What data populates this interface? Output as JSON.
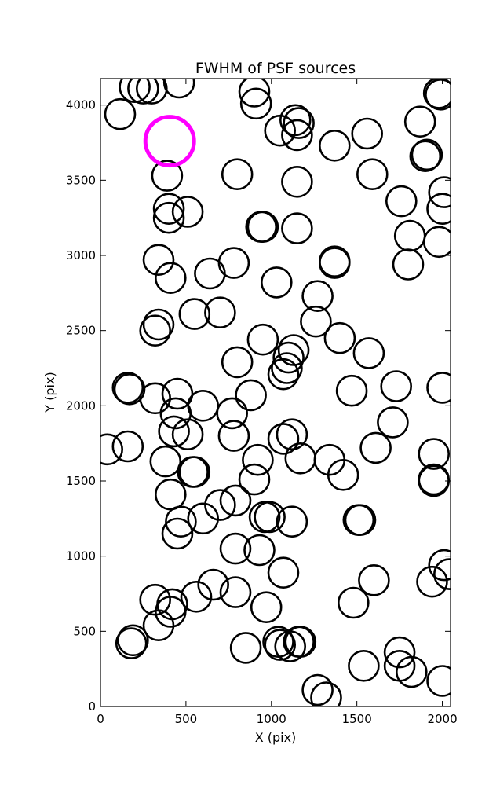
{
  "chart_data": {
    "type": "scatter",
    "title": "FWHM of PSF sources",
    "xlabel": "X (pix)",
    "ylabel": "Y (pix)",
    "xlim": [
      0,
      2048
    ],
    "ylim": [
      0,
      4176
    ],
    "xticks": [
      0,
      500,
      1000,
      1500,
      2000
    ],
    "yticks": [
      0,
      500,
      1000,
      1500,
      2000,
      2500,
      3000,
      3500,
      4000
    ],
    "grid": false,
    "marker": "open-circle",
    "series": [
      {
        "color": "#000000",
        "points": [
          [
            200,
            4120
          ],
          [
            300,
            4110
          ],
          [
            250,
            4110
          ],
          [
            460,
            4150
          ],
          [
            115,
            3940
          ],
          [
            900,
            4090
          ],
          [
            910,
            4010
          ],
          [
            1050,
            3830
          ],
          [
            1140,
            3900
          ],
          [
            1160,
            3880
          ],
          [
            1150,
            3800
          ],
          [
            1370,
            3730
          ],
          [
            1560,
            3810
          ],
          [
            1870,
            3890
          ],
          [
            1910,
            3670
          ],
          [
            1900,
            3660
          ],
          [
            1980,
            4080
          ],
          [
            1990,
            4070
          ],
          [
            390,
            3530
          ],
          [
            800,
            3540
          ],
          [
            1150,
            3490
          ],
          [
            1590,
            3540
          ],
          [
            1760,
            3360
          ],
          [
            2010,
            3420
          ],
          [
            2000,
            3310
          ],
          [
            400,
            3310
          ],
          [
            400,
            3250
          ],
          [
            510,
            3290
          ],
          [
            940,
            3190
          ],
          [
            950,
            3190
          ],
          [
            1150,
            3180
          ],
          [
            1810,
            3130
          ],
          [
            1980,
            3090
          ],
          [
            1800,
            2940
          ],
          [
            340,
            2970
          ],
          [
            410,
            2850
          ],
          [
            640,
            2880
          ],
          [
            780,
            2950
          ],
          [
            1370,
            2960
          ],
          [
            1370,
            2950
          ],
          [
            1030,
            2820
          ],
          [
            1270,
            2730
          ],
          [
            550,
            2610
          ],
          [
            700,
            2620
          ],
          [
            340,
            2540
          ],
          [
            320,
            2500
          ],
          [
            1260,
            2560
          ],
          [
            1400,
            2450
          ],
          [
            950,
            2440
          ],
          [
            1130,
            2370
          ],
          [
            1100,
            2320
          ],
          [
            1070,
            2210
          ],
          [
            1090,
            2250
          ],
          [
            800,
            2290
          ],
          [
            1570,
            2350
          ],
          [
            160,
            2120
          ],
          [
            170,
            2110
          ],
          [
            320,
            2050
          ],
          [
            450,
            2080
          ],
          [
            600,
            2000
          ],
          [
            880,
            2070
          ],
          [
            1470,
            2100
          ],
          [
            1730,
            2130
          ],
          [
            2000,
            2120
          ],
          [
            440,
            1950
          ],
          [
            430,
            1830
          ],
          [
            510,
            1810
          ],
          [
            770,
            1950
          ],
          [
            780,
            1800
          ],
          [
            1710,
            1890
          ],
          [
            40,
            1710
          ],
          [
            160,
            1730
          ],
          [
            380,
            1630
          ],
          [
            540,
            1560
          ],
          [
            550,
            1560
          ],
          [
            920,
            1640
          ],
          [
            900,
            1510
          ],
          [
            1070,
            1780
          ],
          [
            1120,
            1810
          ],
          [
            1170,
            1650
          ],
          [
            1340,
            1640
          ],
          [
            1420,
            1540
          ],
          [
            1610,
            1720
          ],
          [
            1950,
            1680
          ],
          [
            1950,
            1500
          ],
          [
            1950,
            1510
          ],
          [
            410,
            1410
          ],
          [
            470,
            1230
          ],
          [
            450,
            1150
          ],
          [
            600,
            1250
          ],
          [
            700,
            1340
          ],
          [
            790,
            1370
          ],
          [
            790,
            1050
          ],
          [
            930,
            1040
          ],
          [
            960,
            1260
          ],
          [
            990,
            1260
          ],
          [
            1120,
            1230
          ],
          [
            1510,
            1240
          ],
          [
            1520,
            1240
          ],
          [
            2010,
            940
          ],
          [
            2040,
            880
          ],
          [
            1940,
            830
          ],
          [
            1070,
            890
          ],
          [
            1600,
            840
          ],
          [
            1480,
            690
          ],
          [
            320,
            710
          ],
          [
            420,
            680
          ],
          [
            410,
            630
          ],
          [
            340,
            540
          ],
          [
            560,
            730
          ],
          [
            660,
            810
          ],
          [
            790,
            760
          ],
          [
            970,
            660
          ],
          [
            190,
            440
          ],
          [
            180,
            420
          ],
          [
            850,
            390
          ],
          [
            1040,
            430
          ],
          [
            1050,
            410
          ],
          [
            1110,
            400
          ],
          [
            1160,
            430
          ],
          [
            1170,
            430
          ],
          [
            1540,
            270
          ],
          [
            1750,
            360
          ],
          [
            1750,
            270
          ],
          [
            1820,
            230
          ],
          [
            2000,
            170
          ],
          [
            1270,
            110
          ],
          [
            1320,
            60
          ]
        ]
      },
      {
        "color": "#ff00ff",
        "points": [
          [
            405,
            3760
          ]
        ]
      }
    ]
  }
}
